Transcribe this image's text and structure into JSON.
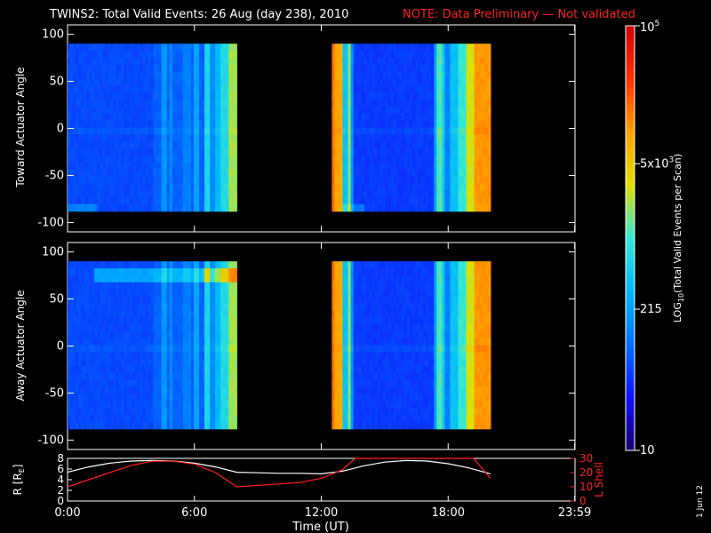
{
  "title": "TWINS2: Total Valid Events: 26 Aug (day 238), 2010",
  "note": "NOTE: Data Preliminary — Not validated",
  "date_stamp": "1 Jun 12",
  "chart_data": [
    {
      "type": "heatmap",
      "ylabel": "Toward Actuator Angle",
      "ylim": [
        -110,
        110
      ],
      "yticks": [
        "100",
        "50",
        "0",
        "-50",
        "-100"
      ],
      "xlim": [
        "0:00",
        "23:59"
      ],
      "data_intervals_ut": [
        [
          "0:00",
          "8:00"
        ],
        [
          "12:30",
          "20:00"
        ]
      ],
      "angle_range": [
        -88,
        90
      ]
    },
    {
      "type": "heatmap",
      "ylabel": "Away Actuator Angle",
      "ylim": [
        -110,
        110
      ],
      "yticks": [
        "100",
        "50",
        "0",
        "-50",
        "-100"
      ],
      "xlim": [
        "0:00",
        "23:59"
      ],
      "data_intervals_ut": [
        [
          "0:00",
          "8:00"
        ],
        [
          "12:30",
          "20:00"
        ]
      ],
      "angle_range": [
        -88,
        90
      ]
    },
    {
      "type": "line",
      "xlabel": "Time (UT)",
      "xticks": [
        "0:00",
        "6:00",
        "12:00",
        "18:00",
        "23:59"
      ],
      "left_axis": {
        "label": "R [R",
        "sub": "E",
        "close": "]",
        "ticks": [
          "8",
          "6",
          "4",
          "2",
          "0"
        ],
        "ylim": [
          0,
          8
        ]
      },
      "right_axis": {
        "label": "L Shell",
        "ticks": [
          "30",
          "20",
          "10",
          "0"
        ],
        "ylim": [
          0,
          30
        ]
      },
      "series": [
        {
          "axis": "R",
          "color": "#ffffff",
          "x": [
            0,
            1,
            2,
            3,
            4,
            5,
            6,
            7,
            8,
            9,
            10,
            11,
            12,
            13,
            14,
            15,
            16,
            17,
            18,
            19,
            20
          ],
          "y": [
            5.4,
            6.4,
            7.1,
            7.5,
            7.6,
            7.5,
            7.1,
            6.4,
            5.4,
            5.3,
            5.2,
            5.2,
            5.1,
            5.6,
            6.6,
            7.3,
            7.6,
            7.5,
            7.0,
            6.2,
            5.1
          ]
        },
        {
          "axis": "L",
          "color": "#ff2020",
          "x": [
            0,
            1,
            2,
            3,
            4,
            5,
            6,
            7,
            8,
            9,
            10,
            11,
            12,
            13,
            13.6,
            19.2,
            20
          ],
          "y": [
            10,
            15,
            20,
            25,
            28,
            28,
            26,
            20,
            10,
            11,
            12,
            13,
            16,
            22,
            30,
            30,
            16
          ]
        }
      ]
    }
  ],
  "colorbar": {
    "label": "LOG",
    "label_sub": "10",
    "label_rest": "(Total Valid  Events per Scan)",
    "ticks": [
      {
        "text": "10",
        "log": 1.0
      },
      {
        "text": "215",
        "log": 2.33
      },
      {
        "text": "5x10",
        "sup": "3",
        "log": 3.7
      },
      {
        "text": "10",
        "sup": "5",
        "log": 5.0
      }
    ],
    "range_log": [
      1,
      5
    ],
    "colormap": [
      "#1a0070",
      "#1010ff",
      "#0070ff",
      "#00b8ff",
      "#30e8d8",
      "#e0e000",
      "#ffa000",
      "#ff3000",
      "#d00000"
    ]
  }
}
